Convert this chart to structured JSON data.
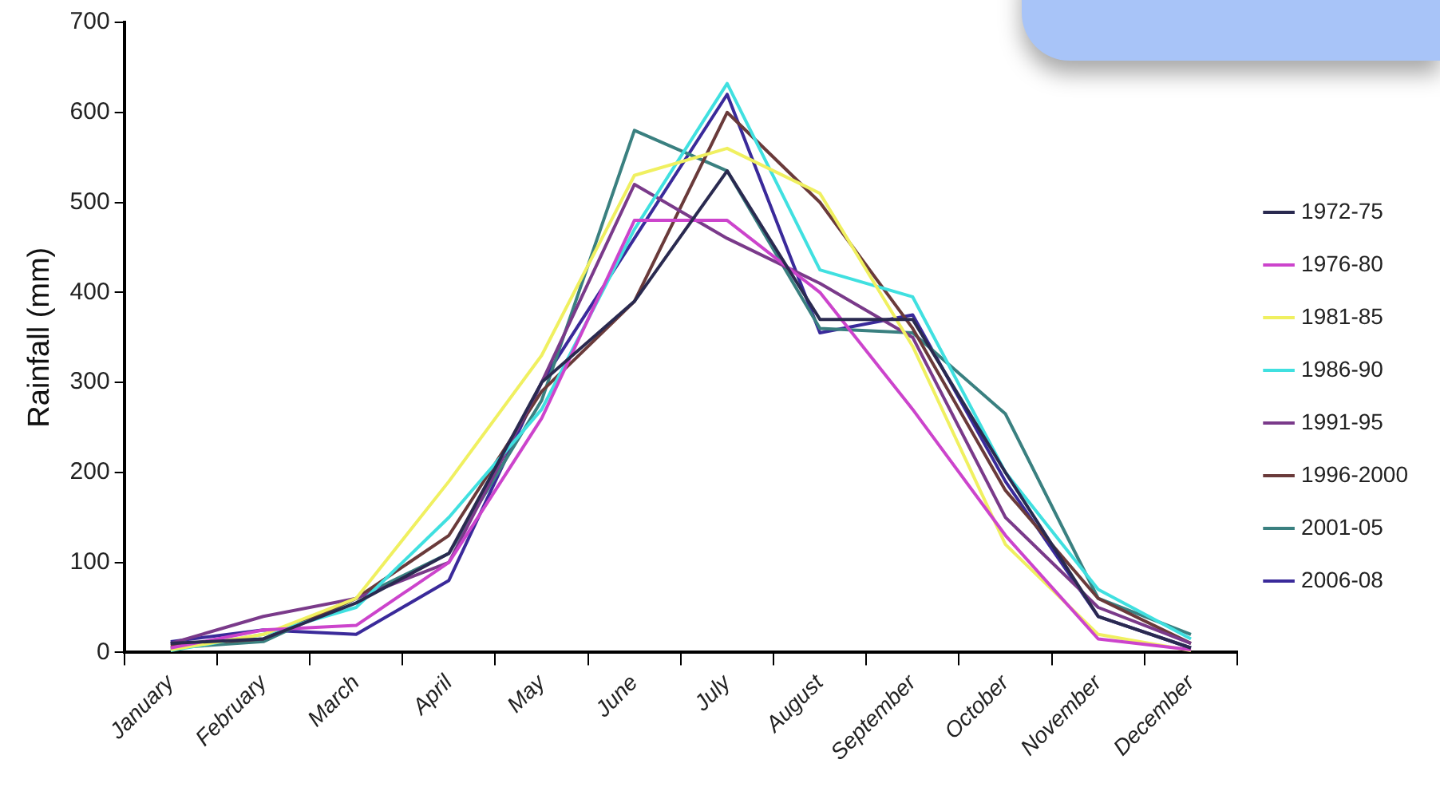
{
  "chart_data": {
    "type": "line",
    "ylabel": "Rainfall (mm)",
    "categories": [
      "January",
      "February",
      "March",
      "April",
      "May",
      "June",
      "July",
      "August",
      "September",
      "October",
      "November",
      "December"
    ],
    "ylim": [
      0,
      700
    ],
    "yticks": [
      0,
      100,
      200,
      300,
      400,
      500,
      600,
      700
    ],
    "legend": "right",
    "marker": "none",
    "line_style": "solid",
    "series": [
      {
        "name": "1972-75",
        "color": "#2a2a50",
        "values": [
          10,
          15,
          55,
          110,
          300,
          390,
          535,
          370,
          370,
          200,
          40,
          5
        ]
      },
      {
        "name": "1976-80",
        "color": "#cc44cc",
        "values": [
          5,
          25,
          30,
          100,
          260,
          480,
          480,
          400,
          270,
          130,
          15,
          3
        ]
      },
      {
        "name": "1981-85",
        "color": "#f0f060",
        "values": [
          3,
          20,
          60,
          190,
          330,
          530,
          560,
          510,
          340,
          120,
          20,
          2
        ]
      },
      {
        "name": "1986-90",
        "color": "#40e0e0",
        "values": [
          2,
          20,
          50,
          150,
          270,
          470,
          632,
          425,
          395,
          200,
          70,
          15
        ]
      },
      {
        "name": "1991-95",
        "color": "#7a3a8a",
        "values": [
          10,
          40,
          60,
          100,
          300,
          520,
          460,
          410,
          350,
          150,
          50,
          10
        ]
      },
      {
        "name": "1996-2000",
        "color": "#6a3a3a",
        "values": [
          8,
          15,
          60,
          130,
          290,
          390,
          600,
          500,
          360,
          180,
          60,
          10
        ]
      },
      {
        "name": "2001-05",
        "color": "#3a8080",
        "values": [
          5,
          12,
          60,
          110,
          280,
          580,
          535,
          360,
          355,
          265,
          60,
          20
        ]
      },
      {
        "name": "2006-08",
        "color": "#3a2a9a",
        "values": [
          12,
          25,
          20,
          80,
          300,
          460,
          620,
          355,
          375,
          190,
          40,
          5
        ]
      }
    ]
  }
}
